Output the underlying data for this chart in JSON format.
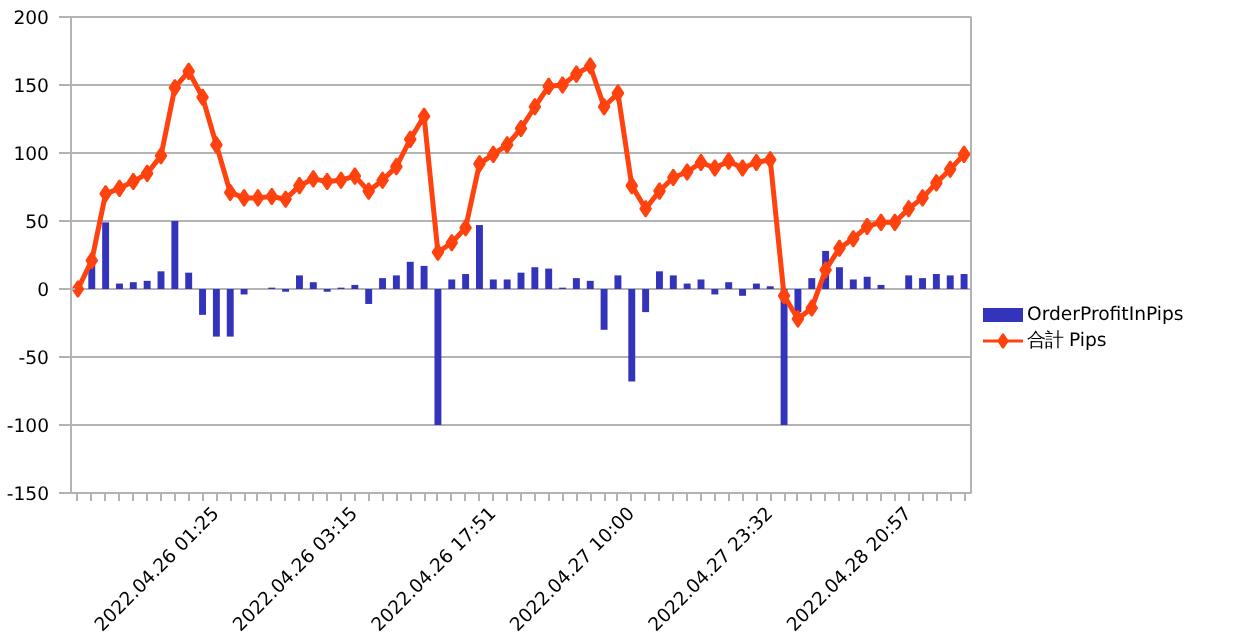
{
  "chart_data": {
    "type": "bar",
    "categories": [
      null,
      null,
      null,
      null,
      null,
      null,
      null,
      null,
      null,
      null,
      "2022.04.26 01:25",
      null,
      null,
      null,
      null,
      null,
      null,
      null,
      null,
      null,
      "2022.04.26 03:15",
      null,
      null,
      null,
      null,
      null,
      null,
      null,
      null,
      null,
      "2022.04.26 17:51",
      null,
      null,
      null,
      null,
      null,
      null,
      null,
      null,
      null,
      "2022.04.27 10:00",
      null,
      null,
      null,
      null,
      null,
      null,
      null,
      null,
      null,
      "2022.04.27 23:32",
      null,
      null,
      null,
      null,
      null,
      null,
      null,
      null,
      null,
      "2022.04.28 20:57",
      null,
      null,
      null,
      null
    ],
    "series": [
      {
        "name": "OrderProfitInPips",
        "color": "#3333bb",
        "values": [
          0,
          21,
          49,
          4,
          5,
          6,
          13,
          50,
          12,
          -19,
          -35,
          -35,
          -4,
          0,
          1,
          -2,
          10,
          5,
          -2,
          1,
          3,
          -11,
          8,
          10,
          20,
          17,
          -100,
          7,
          11,
          47,
          7,
          7,
          12,
          16,
          15,
          1,
          8,
          6,
          -30,
          10,
          -68,
          -17,
          13,
          10,
          4,
          7,
          -4,
          5,
          -5,
          4,
          2,
          -100,
          -17,
          8,
          28,
          16,
          7,
          9,
          3,
          0,
          10,
          8,
          11,
          10,
          11
        ]
      },
      {
        "name": "合計 Pips",
        "type": "line",
        "color": "#ff420e",
        "marker": "diamond",
        "values": [
          0,
          21,
          70,
          74,
          79,
          85,
          98,
          148,
          160,
          141,
          106,
          71,
          67,
          67,
          68,
          66,
          76,
          81,
          79,
          80,
          83,
          72,
          80,
          90,
          110,
          127,
          27,
          34,
          45,
          92,
          99,
          106,
          118,
          134,
          149,
          150,
          158,
          164,
          134,
          144,
          76,
          59,
          72,
          82,
          86,
          93,
          89,
          94,
          89,
          93,
          95,
          -5,
          -22,
          -14,
          14,
          30,
          37,
          46,
          49,
          49,
          59,
          67,
          78,
          88,
          99
        ]
      }
    ],
    "ylim": [
      -150,
      200
    ],
    "yticks": [
      -150,
      -100,
      -50,
      0,
      50,
      100,
      150,
      200
    ],
    "grid": "y",
    "legend": "right"
  }
}
